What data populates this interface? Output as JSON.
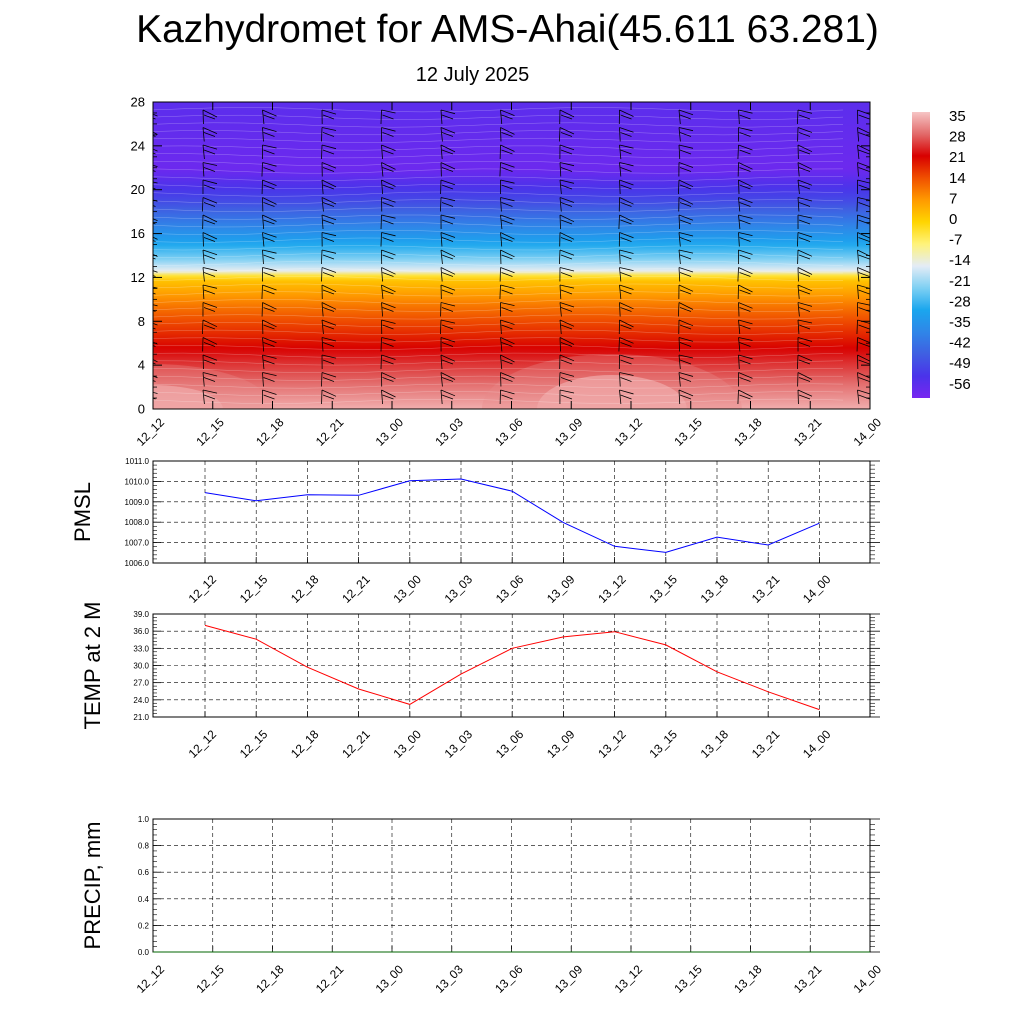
{
  "title": "Kazhydromet for AMS-Ahai(45.611 63.281)",
  "subtitle": "12 July 2025",
  "time_labels": [
    "12_12",
    "12_15",
    "12_18",
    "12_21",
    "13_00",
    "13_03",
    "13_06",
    "13_09",
    "13_12",
    "13_15",
    "13_18",
    "13_21",
    "14_00"
  ],
  "chart_data": [
    {
      "type": "heatmap",
      "name": "cross-section",
      "x": [
        "12_12",
        "12_15",
        "12_18",
        "12_21",
        "13_00",
        "13_03",
        "13_06",
        "13_09",
        "13_12",
        "13_15",
        "13_18",
        "13_21",
        "14_00"
      ],
      "y_ticks": [
        0,
        4,
        8,
        12,
        16,
        20,
        24,
        28
      ],
      "ylim": [
        0,
        28
      ],
      "colorbar_labels": [
        "35",
        "28",
        "21",
        "14",
        "7",
        "0",
        "-7",
        "-14",
        "-21",
        "-28",
        "-35",
        "-42",
        "-49",
        "-56"
      ],
      "color_stops": [
        {
          "v": 38,
          "c": "#f6c5c5"
        },
        {
          "v": 30,
          "c": "#e26a6a"
        },
        {
          "v": 22,
          "c": "#d80000"
        },
        {
          "v": 14,
          "c": "#f05000"
        },
        {
          "v": 7,
          "c": "#ff9a00"
        },
        {
          "v": 0,
          "c": "#ffd500"
        },
        {
          "v": -8,
          "c": "#fff37a"
        },
        {
          "v": -14,
          "c": "#e4ecf6"
        },
        {
          "v": -20,
          "c": "#7ed0f3"
        },
        {
          "v": -28,
          "c": "#1aa6ee"
        },
        {
          "v": -36,
          "c": "#2f86e8"
        },
        {
          "v": -44,
          "c": "#3f5fe2"
        },
        {
          "v": -52,
          "c": "#4a33ea"
        },
        {
          "v": -60,
          "c": "#7826f0"
        }
      ],
      "grid": false
    },
    {
      "type": "line",
      "name": "pmsl",
      "ylabel": "PMSL",
      "x": [
        "12_12",
        "12_15",
        "12_18",
        "12_21",
        "13_00",
        "13_03",
        "13_06",
        "13_09",
        "13_12",
        "13_15",
        "13_18",
        "13_21",
        "14_00"
      ],
      "values": [
        1009.45,
        1009.05,
        1009.35,
        1009.32,
        1010.03,
        1010.12,
        1009.52,
        1007.98,
        1006.82,
        1006.52,
        1007.27,
        1006.88,
        1007.95
      ],
      "ylim": [
        1006.0,
        1011.0
      ],
      "y_ticks": [
        "1006.0",
        "1007.0",
        "1008.0",
        "1009.0",
        "1010.0",
        "1011.0"
      ],
      "color": "#0000ff",
      "grid": true
    },
    {
      "type": "line",
      "name": "temp",
      "ylabel": "TEMP at 2 M",
      "x": [
        "12_12",
        "12_15",
        "12_18",
        "12_21",
        "13_00",
        "13_03",
        "13_06",
        "13_09",
        "13_12",
        "13_15",
        "13_18",
        "13_21",
        "14_00"
      ],
      "values": [
        37.0,
        34.6,
        29.7,
        25.9,
        23.2,
        28.5,
        33.0,
        35.0,
        35.9,
        33.6,
        28.9,
        25.4,
        22.3
      ],
      "ylim": [
        21.0,
        39.0
      ],
      "y_ticks": [
        "21.0",
        "24.0",
        "27.0",
        "30.0",
        "33.0",
        "36.0",
        "39.0"
      ],
      "color": "#ff0000",
      "grid": true
    },
    {
      "type": "line",
      "name": "precip",
      "ylabel": "PRECIP, mm",
      "x": [
        "12_12",
        "12_15",
        "12_18",
        "12_21",
        "13_00",
        "13_03",
        "13_06",
        "13_09",
        "13_12",
        "13_15",
        "13_18",
        "13_21",
        "14_00"
      ],
      "values": [
        0,
        0,
        0,
        0,
        0,
        0,
        0,
        0,
        0,
        0,
        0,
        0,
        0
      ],
      "ylim": [
        0.0,
        1.0
      ],
      "y_ticks": [
        "0.0",
        "0.2",
        "0.4",
        "0.6",
        "0.8",
        "1.0"
      ],
      "color": "#006400",
      "grid": true
    }
  ]
}
